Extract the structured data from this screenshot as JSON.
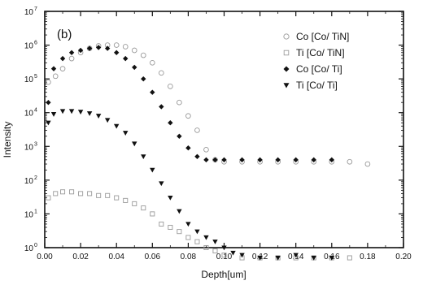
{
  "chart_data": {
    "type": "scatter",
    "panel_label": "(b)",
    "xlabel": "Depth[um]",
    "ylabel": "Intensity",
    "xlim": [
      0.0,
      0.2
    ],
    "ylim_log10": [
      0,
      7
    ],
    "y_scale": "log",
    "grid": false,
    "legend_position": "top-right",
    "x_ticks": [
      "0.00",
      "0.02",
      "0.04",
      "0.06",
      "0.08",
      "0.10",
      "0.12",
      "0.14",
      "0.16",
      "0.18",
      "0.20"
    ],
    "y_ticks": [
      {
        "base": "10",
        "exp": "0"
      },
      {
        "base": "10",
        "exp": "1"
      },
      {
        "base": "10",
        "exp": "2"
      },
      {
        "base": "10",
        "exp": "3"
      },
      {
        "base": "10",
        "exp": "4"
      },
      {
        "base": "10",
        "exp": "5"
      },
      {
        "base": "10",
        "exp": "6"
      },
      {
        "base": "10",
        "exp": "7"
      }
    ],
    "series": [
      {
        "name": "Co [Co/ TiN]",
        "marker": "open-circle",
        "color": "#9a9a9a",
        "x": [
          0.002,
          0.006,
          0.01,
          0.015,
          0.02,
          0.025,
          0.03,
          0.035,
          0.04,
          0.045,
          0.05,
          0.055,
          0.06,
          0.065,
          0.07,
          0.075,
          0.08,
          0.085,
          0.09,
          0.095,
          0.1,
          0.11,
          0.12,
          0.13,
          0.14,
          0.15,
          0.16,
          0.17,
          0.18
        ],
        "y": [
          80000,
          120000,
          200000,
          400000,
          600000,
          800000,
          950000,
          1000000,
          1000000,
          900000,
          700000,
          500000,
          300000,
          150000,
          60000,
          20000,
          8000,
          3000,
          800,
          400,
          350,
          350,
          350,
          350,
          350,
          350,
          350,
          350,
          300
        ]
      },
      {
        "name": "Ti [Co/ TiN]",
        "marker": "open-square",
        "color": "#9a9a9a",
        "x": [
          0.002,
          0.006,
          0.01,
          0.015,
          0.02,
          0.025,
          0.03,
          0.035,
          0.04,
          0.045,
          0.05,
          0.055,
          0.06,
          0.065,
          0.07,
          0.075,
          0.08,
          0.085,
          0.09,
          0.095,
          0.1,
          0.11,
          0.12,
          0.13,
          0.14,
          0.15,
          0.16,
          0.17
        ],
        "y": [
          30,
          40,
          45,
          45,
          40,
          40,
          35,
          35,
          30,
          25,
          20,
          15,
          10,
          5,
          4,
          3,
          2,
          1.5,
          1,
          0.8,
          0.6,
          0.5,
          0.5,
          0.5,
          0.5,
          0.5,
          0.5,
          0.5
        ]
      },
      {
        "name": "Co [Co/ Ti]",
        "marker": "filled-diamond",
        "color": "#111111",
        "x": [
          0.002,
          0.005,
          0.01,
          0.015,
          0.02,
          0.025,
          0.03,
          0.035,
          0.04,
          0.045,
          0.05,
          0.055,
          0.06,
          0.065,
          0.07,
          0.075,
          0.08,
          0.085,
          0.09,
          0.095,
          0.1,
          0.11,
          0.12,
          0.13,
          0.14,
          0.15,
          0.16
        ],
        "y": [
          20000,
          200000,
          400000,
          600000,
          700000,
          800000,
          850000,
          800000,
          600000,
          400000,
          220000,
          100000,
          40000,
          15000,
          5000,
          2000,
          900,
          500,
          400,
          400,
          400,
          400,
          400,
          400,
          400,
          400,
          400
        ]
      },
      {
        "name": "Ti [Co/ Ti]",
        "marker": "filled-triangle-down",
        "color": "#111111",
        "x": [
          0.002,
          0.005,
          0.01,
          0.015,
          0.02,
          0.025,
          0.03,
          0.035,
          0.04,
          0.045,
          0.05,
          0.055,
          0.06,
          0.065,
          0.07,
          0.075,
          0.08,
          0.085,
          0.09,
          0.095,
          0.1,
          0.105,
          0.11,
          0.12,
          0.13,
          0.14,
          0.15,
          0.16
        ],
        "y": [
          5000,
          9000,
          11000,
          11000,
          10500,
          9500,
          8000,
          6000,
          4000,
          2500,
          1200,
          500,
          200,
          80,
          30,
          12,
          5,
          3,
          2,
          1.5,
          1,
          0.7,
          0.6,
          0.5,
          0.5,
          0.6,
          0.5,
          0.5
        ]
      }
    ]
  }
}
